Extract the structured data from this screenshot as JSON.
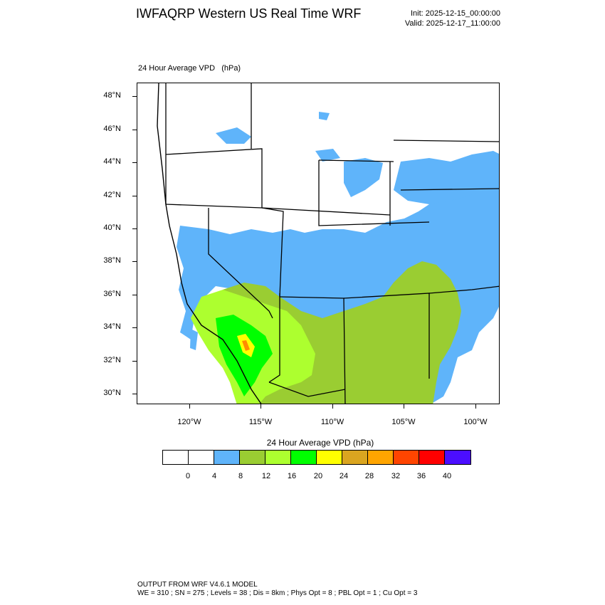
{
  "header": {
    "title": "IWFAQRP Western US Real Time WRF",
    "init": "Init: 2025-12-15_00:00:00",
    "valid": "Valid: 2025-12-17_11:00:00"
  },
  "map": {
    "label": "24 Hour Average VPD   (hPa)",
    "lat_labels": [
      "48°N",
      "46°N",
      "44°N",
      "42°N",
      "40°N",
      "38°N",
      "36°N",
      "34°N",
      "32°N",
      "30°N"
    ],
    "lon_labels": [
      "120°W",
      "115°W",
      "110°W",
      "105°W",
      "100°W"
    ],
    "colors": {
      "blue": "#5fb4fa",
      "olive": "#9acd32",
      "lime": "#adff2f",
      "green": "#00ff00",
      "yellow": "#ffff00",
      "orange": "#ff8c00"
    }
  },
  "colorbar": {
    "title": "24 Hour Average VPD  (hPa)",
    "labels": [
      "0",
      "4",
      "8",
      "12",
      "16",
      "20",
      "24",
      "28",
      "32",
      "36",
      "40"
    ],
    "colors": [
      "#ffffff",
      "#ffffff",
      "#5fb4fa",
      "#9acd32",
      "#adff2f",
      "#00ff00",
      "#ffff00",
      "#daa520",
      "#ffa500",
      "#ff4500",
      "#ff0000",
      "#4b0eff"
    ]
  },
  "footer": {
    "line1": "OUTPUT FROM WRF V4.6.1 MODEL",
    "line2": "WE = 310 ; SN = 275 ; Levels = 38 ; Dis = 8km ; Phys Opt = 8 ; PBL Opt = 1 ; Cu Opt = 3"
  }
}
